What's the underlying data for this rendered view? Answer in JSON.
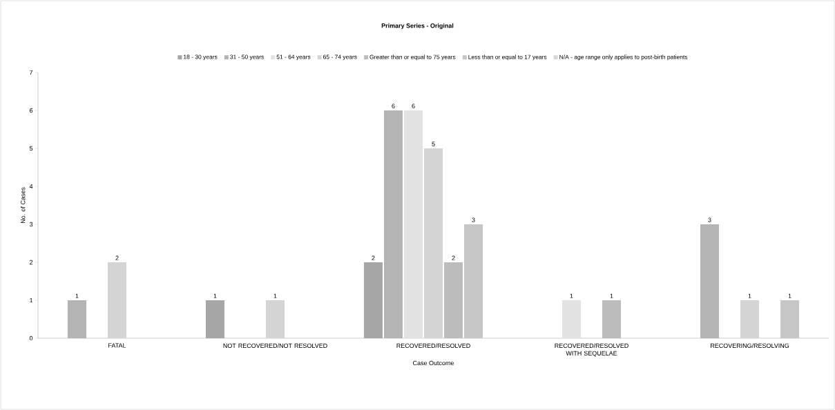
{
  "chart_data": {
    "type": "bar",
    "title": "Primary Series - Original",
    "xlabel": "Case Outcome",
    "ylabel": "No. of Cases",
    "categories": [
      "FATAL",
      "NOT RECOVERED/NOT RESOLVED",
      "RECOVERED/RESOLVED",
      "RECOVERED/RESOLVED WITH SEQUELAE",
      "RECOVERING/RESOLVING"
    ],
    "series": [
      {
        "name": "18 - 30 years",
        "color": "#a6a6a6",
        "values": [
          null,
          1,
          2,
          null,
          null
        ]
      },
      {
        "name": "31 - 50 years",
        "color": "#b4b4b4",
        "values": [
          1,
          null,
          6,
          null,
          3
        ]
      },
      {
        "name": "51 - 64 years",
        "color": "#e2e2e2",
        "values": [
          null,
          null,
          6,
          1,
          null
        ]
      },
      {
        "name": "65 - 74 years",
        "color": "#d4d4d4",
        "values": [
          2,
          1,
          5,
          null,
          1
        ]
      },
      {
        "name": "Greater than or equal to 75 years",
        "color": "#bcbcbc",
        "values": [
          null,
          null,
          2,
          1,
          null
        ]
      },
      {
        "name": "Less than or equal to 17 years",
        "color": "#c6c6c6",
        "values": [
          null,
          null,
          3,
          null,
          1
        ]
      },
      {
        "name": "N/A - age range only applies to post-birth patients",
        "color": "#d8d8d8",
        "values": [
          null,
          null,
          null,
          null,
          null
        ]
      }
    ],
    "ylim": [
      0,
      7
    ],
    "yticks": [
      0,
      1,
      2,
      3,
      4,
      5,
      6,
      7
    ],
    "legend": "top",
    "data_labels": true
  }
}
